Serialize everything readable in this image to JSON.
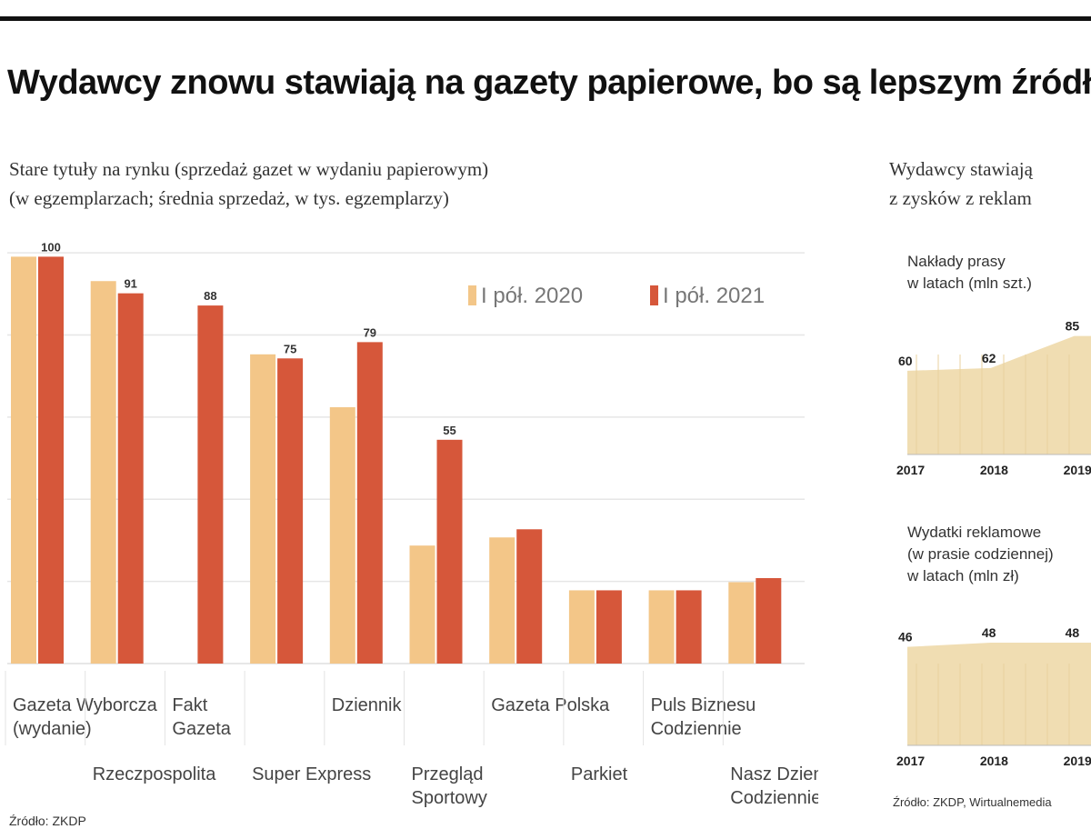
{
  "header": {
    "title": "Wydawcy znowu stawiają na gazety papierowe, bo są lepszym źródłem",
    "subtitle_lines": [
      "Stare tytuły na rynku (sprzedaż gazet w wydaniu papierowym)",
      "(w egzemplarzach; średnia sprzedaż, w tys. egzemplarzy)"
    ],
    "right_subtitle_lines": [
      "Wydawcy stawiają",
      "z zysków z reklam"
    ],
    "source": "Źródło: ZKDP",
    "source_right": "Źródło: ZKDP, Wirtualnemedia"
  },
  "chart_data": [
    {
      "type": "bar",
      "title": "",
      "categories": [
        "Gazeta Wyborcza",
        "Rzeczpospolita",
        "Fakt",
        "Super Express",
        "Dziennik Gazeta Prawna",
        "Przegląd Sportowy",
        "Gazeta Polska Codziennie",
        "Parkiet",
        "Puls Biznesu",
        "Nasz Dziennik"
      ],
      "label_lines": [
        [
          "Gazeta Wyborcza",
          "(wydanie)"
        ],
        [
          "Rzeczpospolita"
        ],
        [
          "Fakt",
          "Gazeta"
        ],
        [
          "Super Express"
        ],
        [
          "Dziennik"
        ],
        [
          "Przegląd",
          "Sportowy"
        ],
        [
          "Gazeta Polska"
        ],
        [
          "Parkiet"
        ],
        [
          "Puls Biznesu",
          "Codziennie"
        ],
        [
          "Nasz Dziennik",
          "Codziennie"
        ]
      ],
      "label_rows": [
        0,
        1,
        0,
        1,
        0,
        1,
        0,
        1,
        0,
        1
      ],
      "series": [
        {
          "name": "I pół. 2020",
          "values": [
            100,
            94,
            null,
            76,
            63,
            29,
            31,
            18,
            18,
            20
          ],
          "color": "#f3c688"
        },
        {
          "name": "I pół. 2021",
          "values": [
            100,
            91,
            88,
            75,
            79,
            55,
            33,
            18,
            18,
            21
          ],
          "color": "#d6573a"
        }
      ],
      "data_labels": {
        "I pół. 2020": [
          "",
          "",
          "",
          "",
          "",
          "",
          "",
          "",
          "",
          ""
        ],
        "I pół. 2021": [
          "100",
          "91",
          "88",
          "75",
          "79",
          "55",
          "",
          "",
          "",
          ""
        ]
      },
      "ylim": [
        0,
        105
      ],
      "grid": true,
      "legend_position": "top-right"
    },
    {
      "type": "area",
      "title_lines": [
        "Nakłady prasy",
        "w latach (mln szt.)"
      ],
      "x_labels": [
        "2017",
        "2018",
        "2019"
      ],
      "values": [
        60,
        62,
        85
      ],
      "data_labels": [
        "60",
        "62",
        "85"
      ],
      "color": "#f0ddb2"
    },
    {
      "type": "area",
      "title_lines": [
        "Wydatki reklamowe",
        "(w prasie codziennej)",
        "w latach (mln zł)"
      ],
      "x_labels": [
        "2017",
        "2018",
        "2019"
      ],
      "values": [
        46,
        48,
        48
      ],
      "data_labels": [
        "46",
        "48",
        "48"
      ],
      "color": "#f0ddb2"
    }
  ]
}
